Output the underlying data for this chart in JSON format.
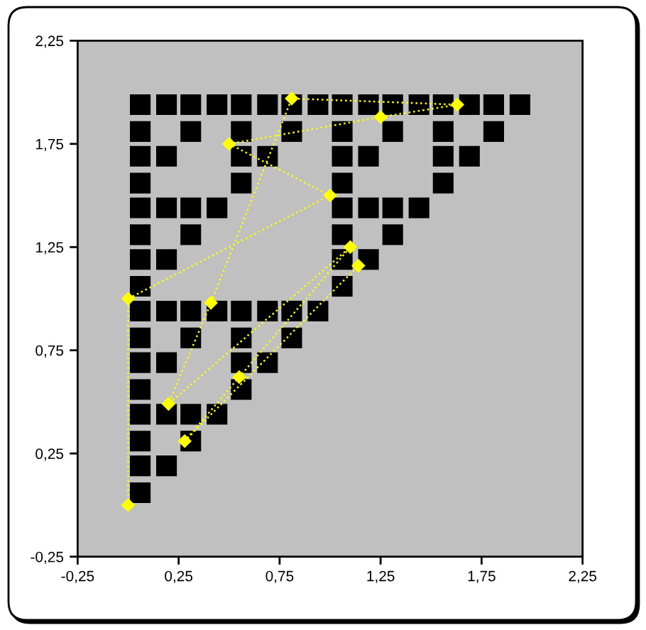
{
  "chart_data": {
    "type": "scatter",
    "xlim": [
      -0.25,
      2.25
    ],
    "ylim": [
      -0.25,
      2.25
    ],
    "xticks": [
      {
        "value": -0.25,
        "label": "-0,25"
      },
      {
        "value": 0.25,
        "label": "0,25"
      },
      {
        "value": 0.75,
        "label": "0,75"
      },
      {
        "value": 1.25,
        "label": "1,25"
      },
      {
        "value": 1.75,
        "label": "1,75"
      },
      {
        "value": 2.25,
        "label": "2,25"
      }
    ],
    "yticks": [
      {
        "value": -0.25,
        "label": "-0,25"
      },
      {
        "value": 0.25,
        "label": "0,25"
      },
      {
        "value": 0.75,
        "label": "0,75"
      },
      {
        "value": 1.25,
        "label": "1,25"
      },
      {
        "value": 1.75,
        "label": "1,75"
      },
      {
        "value": 2.25,
        "label": "2,25"
      }
    ],
    "series": [
      {
        "color": "#000000",
        "marker": "square",
        "x": [
          0.06,
          0.19,
          0.31,
          0.44,
          0.56,
          0.69,
          0.81,
          0.94,
          1.06,
          1.19,
          1.31,
          1.44,
          1.56,
          1.69,
          1.81,
          1.94,
          0.06,
          0.31,
          0.56,
          0.81,
          1.06,
          1.31,
          1.56,
          1.81,
          0.06,
          0.19,
          0.56,
          0.69,
          1.06,
          1.19,
          1.56,
          1.69,
          0.06,
          0.56,
          1.06,
          1.56,
          0.06,
          0.19,
          0.31,
          0.44,
          1.06,
          1.19,
          1.31,
          1.44,
          0.06,
          0.31,
          1.06,
          1.31,
          0.06,
          0.19,
          1.06,
          1.19,
          0.06,
          1.06,
          0.06,
          0.19,
          0.31,
          0.44,
          0.56,
          0.69,
          0.81,
          0.94,
          0.06,
          0.31,
          0.56,
          0.81,
          0.06,
          0.19,
          0.56,
          0.69,
          0.06,
          0.56,
          0.06,
          0.19,
          0.31,
          0.44,
          0.06,
          0.31,
          0.06,
          0.19,
          0.06
        ],
        "values": [
          1.94,
          1.94,
          1.94,
          1.94,
          1.94,
          1.94,
          1.94,
          1.94,
          1.94,
          1.94,
          1.94,
          1.94,
          1.94,
          1.94,
          1.94,
          1.94,
          1.81,
          1.81,
          1.81,
          1.81,
          1.81,
          1.81,
          1.81,
          1.81,
          1.69,
          1.69,
          1.69,
          1.69,
          1.69,
          1.69,
          1.69,
          1.69,
          1.56,
          1.56,
          1.56,
          1.56,
          1.44,
          1.44,
          1.44,
          1.44,
          1.44,
          1.44,
          1.44,
          1.44,
          1.31,
          1.31,
          1.31,
          1.31,
          1.19,
          1.19,
          1.19,
          1.19,
          1.06,
          1.06,
          0.94,
          0.94,
          0.94,
          0.94,
          0.94,
          0.94,
          0.94,
          0.94,
          0.81,
          0.81,
          0.81,
          0.81,
          0.69,
          0.69,
          0.69,
          0.69,
          0.56,
          0.56,
          0.44,
          0.44,
          0.44,
          0.44,
          0.31,
          0.31,
          0.19,
          0.19,
          0.06
        ]
      },
      {
        "type": "line",
        "color": "#ffff00",
        "marker": "diamond",
        "line_style": "dotted",
        "x": [
          0,
          0,
          1,
          0.5,
          1.25,
          1.63,
          0.81,
          0.41,
          0.2,
          1.1,
          0.55,
          0.28,
          1.14
        ],
        "values": [
          0,
          1,
          1.5,
          1.75,
          1.88,
          1.94,
          1.97,
          0.98,
          0.49,
          1.25,
          0.62,
          0.31,
          1.16
        ]
      }
    ]
  }
}
